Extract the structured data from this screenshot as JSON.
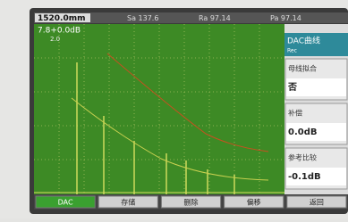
{
  "status_bar": {
    "range": "1520.0mm",
    "sa": "Sa 137.6",
    "ra": "Ra 97.14",
    "pa": "Pa 97.14"
  },
  "readout": {
    "gain": "7.8+0.0dB",
    "sub": "2.0"
  },
  "side_menu": {
    "title": "DAC曲线",
    "subtitle": "Rec",
    "items": [
      {
        "label": "母线拟合",
        "value": "否"
      },
      {
        "label": "补偿",
        "value": "0.0dB"
      },
      {
        "label": "参考比较",
        "value": "-0.1dB"
      }
    ]
  },
  "buttons": [
    "DAC",
    "存储",
    "删除",
    "偏移",
    "返回"
  ]
}
